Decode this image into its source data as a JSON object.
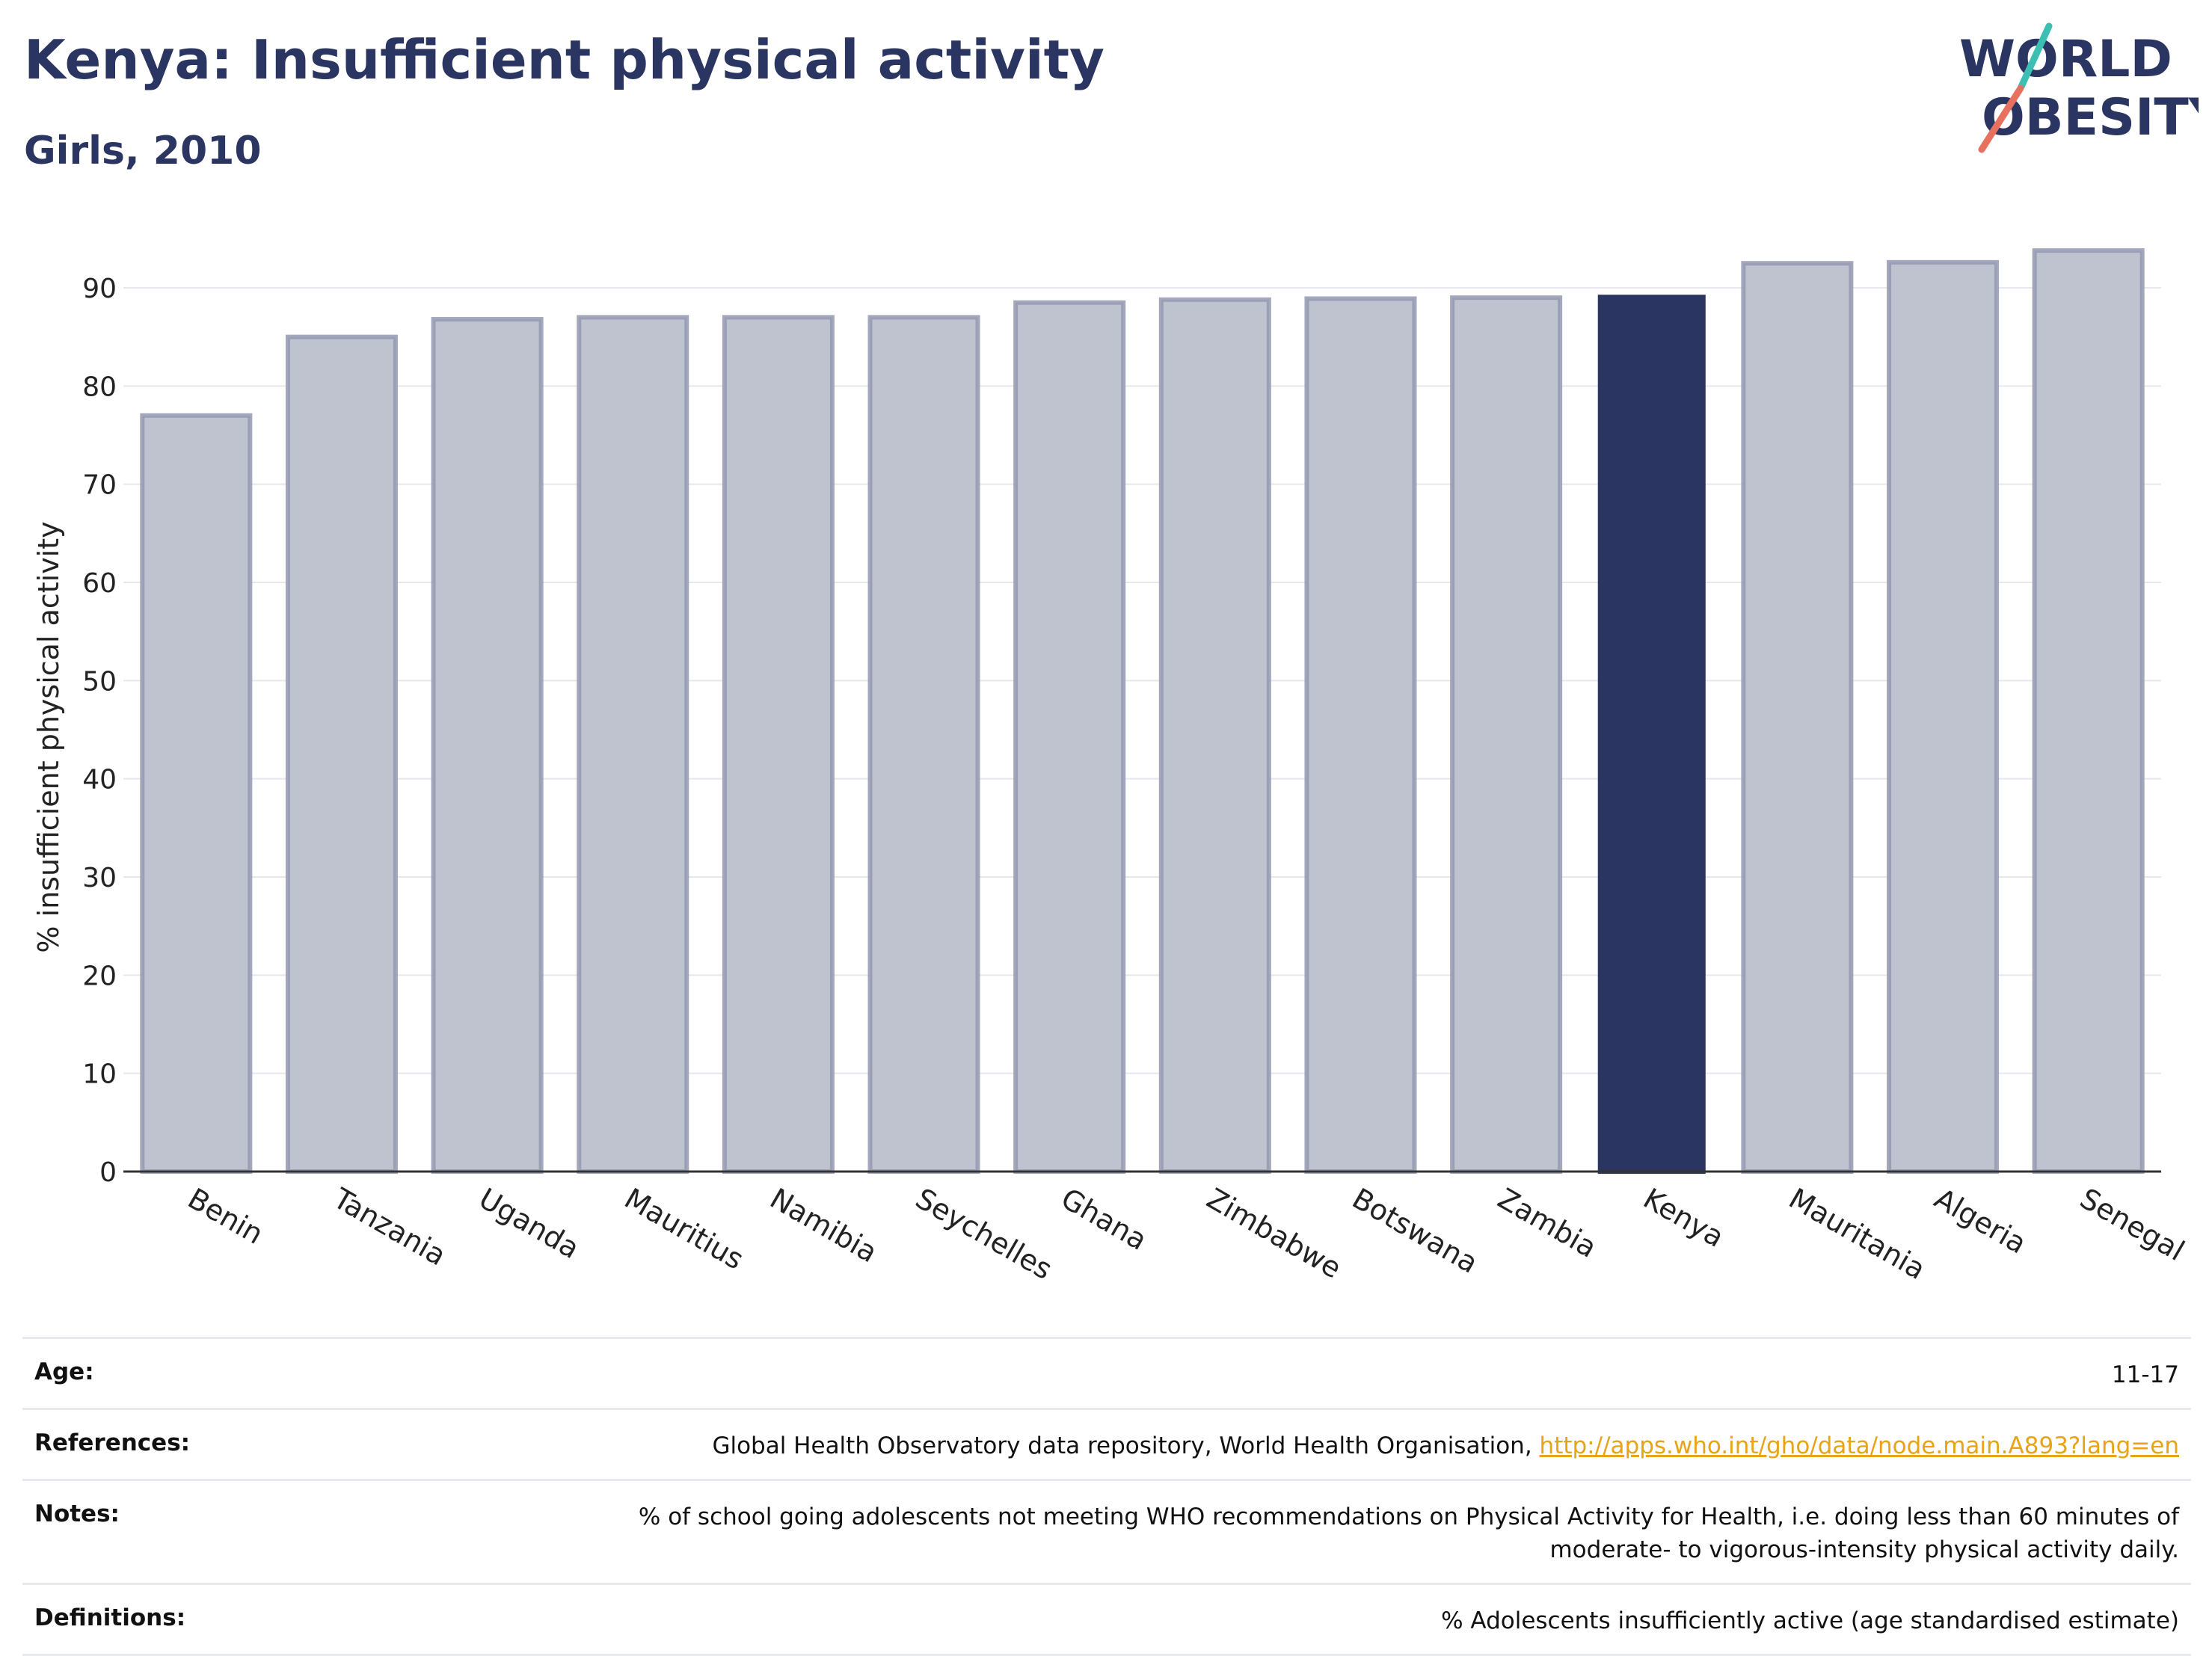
{
  "header": {
    "title": "Kenya: Insufficient physical activity",
    "subtitle": "Girls, 2010"
  },
  "logo": {
    "line1": "WORLD",
    "line2": "OBESITY",
    "text_color": "#2b3561",
    "slash_top_color": "#3bbfb3",
    "slash_bottom_color": "#e8705f"
  },
  "chart_data": {
    "type": "bar",
    "ylabel": "% insufficient physical activity",
    "xlabel": "",
    "ylim": [
      0,
      95
    ],
    "yticks": [
      0,
      10,
      20,
      30,
      40,
      50,
      60,
      70,
      80,
      90
    ],
    "grid": true,
    "categories": [
      "Benin",
      "Tanzania",
      "Uganda",
      "Mauritius",
      "Namibia",
      "Seychelles",
      "Ghana",
      "Zimbabwe",
      "Botswana",
      "Zambia",
      "Kenya",
      "Mauritania",
      "Algeria",
      "Senegal"
    ],
    "values": [
      77.0,
      85.0,
      86.8,
      87.0,
      87.0,
      87.0,
      88.5,
      88.8,
      88.9,
      89.0,
      89.3,
      92.5,
      92.6,
      93.8
    ],
    "highlight": "Kenya",
    "bar_color": "#bfc2cf",
    "bar_border_color": "#9499b0",
    "highlight_color": "#2b3561"
  },
  "meta": {
    "age_label": "Age:",
    "age_value": "11-17",
    "references_label": "References:",
    "references_text": "Global Health Observatory data repository, World Health Organisation, ",
    "references_link": "http://apps.who.int/gho/data/node.main.A893?lang=en",
    "notes_label": "Notes:",
    "notes_line1": "% of school going adolescents not meeting WHO recommendations on Physical Activity for Health, i.e. doing less than 60 minutes of",
    "notes_line2": "moderate- to vigorous-intensity physical activity daily.",
    "definitions_label": "Definitions:",
    "definitions_value": "% Adolescents insufficiently active (age standardised estimate)"
  }
}
